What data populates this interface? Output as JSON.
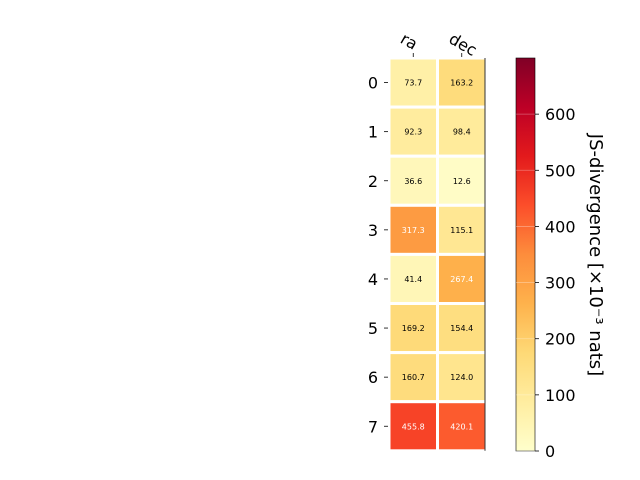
{
  "chart_data": {
    "type": "heatmap",
    "rows": [
      "0",
      "1",
      "2",
      "3",
      "4",
      "5",
      "6",
      "7"
    ],
    "columns": [
      "ra",
      "dec"
    ],
    "values": [
      [
        73.7,
        163.2
      ],
      [
        92.3,
        98.4
      ],
      [
        36.6,
        12.6
      ],
      [
        317.3,
        115.1
      ],
      [
        41.4,
        267.4
      ],
      [
        169.2,
        154.4
      ],
      [
        160.7,
        124.0
      ],
      [
        455.8,
        420.1
      ]
    ],
    "value_labels": [
      [
        "73.7",
        "163.2"
      ],
      [
        "92.3",
        "98.4"
      ],
      [
        "36.6",
        "12.6"
      ],
      [
        "317.3",
        "115.1"
      ],
      [
        "41.4",
        "267.4"
      ],
      [
        "169.2",
        "154.4"
      ],
      [
        "160.7",
        "124.0"
      ],
      [
        "455.8",
        "420.1"
      ]
    ],
    "colormap": "YlOrRd",
    "colorbar": {
      "label": "JS-divergence [×10⁻³ nats]",
      "range": [
        0,
        700
      ],
      "ticks": [
        "0",
        "100",
        "200",
        "300",
        "400",
        "500",
        "600"
      ]
    }
  }
}
